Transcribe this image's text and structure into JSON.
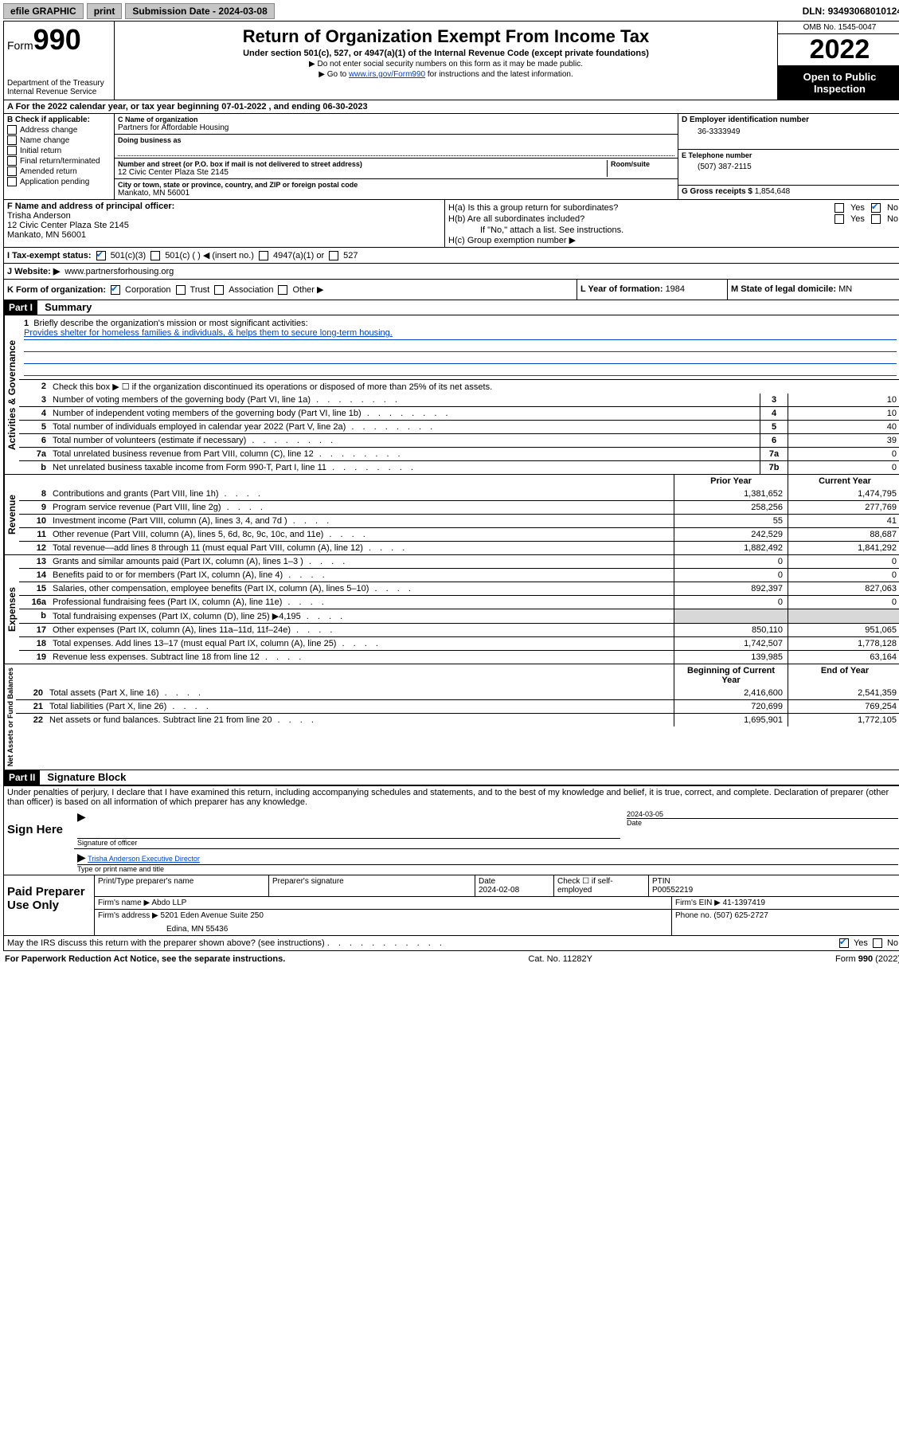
{
  "topbar": {
    "efile": "efile GRAPHIC",
    "print": "print",
    "submission_label": "Submission Date - ",
    "submission_date": "2024-03-08",
    "dln_label": "DLN: ",
    "dln": "93493068010124"
  },
  "header": {
    "form_label": "Form",
    "form_number": "990",
    "dept": "Department of the Treasury",
    "irs": "Internal Revenue Service",
    "title": "Return of Organization Exempt From Income Tax",
    "subtitle": "Under section 501(c), 527, or 4947(a)(1) of the Internal Revenue Code (except private foundations)",
    "note1": "▶ Do not enter social security numbers on this form as it may be made public.",
    "note2_pre": "▶ Go to ",
    "note2_link": "www.irs.gov/Form990",
    "note2_post": " for instructions and the latest information.",
    "omb": "OMB No. 1545-0047",
    "year": "2022",
    "open_public": "Open to Public Inspection"
  },
  "line_a": {
    "text_pre": "A For the 2022 calendar year, or tax year beginning ",
    "begin": "07-01-2022",
    "mid": " , and ending ",
    "end": "06-30-2023"
  },
  "section_b": {
    "label": "B Check if applicable:",
    "items": [
      "Address change",
      "Name change",
      "Initial return",
      "Final return/terminated",
      "Amended return",
      "Application pending"
    ]
  },
  "section_c": {
    "name_label": "C Name of organization",
    "name": "Partners for Affordable Housing",
    "dba_label": "Doing business as",
    "dba": "",
    "street_label": "Number and street (or P.O. box if mail is not delivered to street address)",
    "room_label": "Room/suite",
    "street": "12 Civic Center Plaza Ste 2145",
    "city_label": "City or town, state or province, country, and ZIP or foreign postal code",
    "city": "Mankato, MN  56001"
  },
  "section_d": {
    "label": "D Employer identification number",
    "ein": "36-3333949"
  },
  "section_e": {
    "label": "E Telephone number",
    "phone": "(507) 387-2115"
  },
  "section_g": {
    "label": "G Gross receipts $ ",
    "amount": "1,854,648"
  },
  "section_f": {
    "label": "F Name and address of principal officer:",
    "name": "Trisha Anderson",
    "addr1": "12 Civic Center Plaza Ste 2145",
    "addr2": "Mankato, MN  56001"
  },
  "section_h": {
    "ha": "H(a)  Is this a group return for subordinates?",
    "ha_yes": "Yes",
    "ha_no": "No",
    "hb": "H(b)  Are all subordinates included?",
    "hb_yes": "Yes",
    "hb_no": "No",
    "hb_note": "If \"No,\" attach a list. See instructions.",
    "hc": "H(c)  Group exemption number ▶"
  },
  "line_i": {
    "label": "I   Tax-exempt status:",
    "opt1": "501(c)(3)",
    "opt2": "501(c) (   ) ◀ (insert no.)",
    "opt3": "4947(a)(1) or",
    "opt4": "527"
  },
  "line_j": {
    "label": "J   Website: ▶ ",
    "url": "www.partnersforhousing.org"
  },
  "line_k": {
    "label": "K Form of organization:",
    "opts": [
      "Corporation",
      "Trust",
      "Association",
      "Other ▶"
    ],
    "l_label": "L Year of formation: ",
    "l_val": "1984",
    "m_label": "M State of legal domicile: ",
    "m_val": "MN"
  },
  "part1": {
    "header": "Part I",
    "title": "Summary",
    "tab_gov": "Activities & Governance",
    "tab_rev": "Revenue",
    "tab_exp": "Expenses",
    "tab_net": "Net Assets or Fund Balances",
    "q1": "Briefly describe the organization's mission or most significant activities:",
    "mission": "Provides shelter for homeless families & individuals, & helps them to secure long-term housing.",
    "q2": "Check this box ▶ ☐  if the organization discontinued its operations or disposed of more than 25% of its net assets.",
    "lines_gov": [
      {
        "n": "3",
        "d": "Number of voting members of the governing body (Part VI, line 1a)",
        "box": "3",
        "v": "10"
      },
      {
        "n": "4",
        "d": "Number of independent voting members of the governing body (Part VI, line 1b)",
        "box": "4",
        "v": "10"
      },
      {
        "n": "5",
        "d": "Total number of individuals employed in calendar year 2022 (Part V, line 2a)",
        "box": "5",
        "v": "40"
      },
      {
        "n": "6",
        "d": "Total number of volunteers (estimate if necessary)",
        "box": "6",
        "v": "39"
      },
      {
        "n": "7a",
        "d": "Total unrelated business revenue from Part VIII, column (C), line 12",
        "box": "7a",
        "v": "0"
      },
      {
        "n": "b",
        "d": "Net unrelated business taxable income from Form 990-T, Part I, line 11",
        "box": "7b",
        "v": "0"
      }
    ],
    "col_prior": "Prior Year",
    "col_current": "Current Year",
    "lines_rev": [
      {
        "n": "8",
        "d": "Contributions and grants (Part VIII, line 1h)",
        "p": "1,381,652",
        "c": "1,474,795"
      },
      {
        "n": "9",
        "d": "Program service revenue (Part VIII, line 2g)",
        "p": "258,256",
        "c": "277,769"
      },
      {
        "n": "10",
        "d": "Investment income (Part VIII, column (A), lines 3, 4, and 7d )",
        "p": "55",
        "c": "41"
      },
      {
        "n": "11",
        "d": "Other revenue (Part VIII, column (A), lines 5, 6d, 8c, 9c, 10c, and 11e)",
        "p": "242,529",
        "c": "88,687"
      },
      {
        "n": "12",
        "d": "Total revenue—add lines 8 through 11 (must equal Part VIII, column (A), line 12)",
        "p": "1,882,492",
        "c": "1,841,292"
      }
    ],
    "lines_exp": [
      {
        "n": "13",
        "d": "Grants and similar amounts paid (Part IX, column (A), lines 1–3 )",
        "p": "0",
        "c": "0"
      },
      {
        "n": "14",
        "d": "Benefits paid to or for members (Part IX, column (A), line 4)",
        "p": "0",
        "c": "0"
      },
      {
        "n": "15",
        "d": "Salaries, other compensation, employee benefits (Part IX, column (A), lines 5–10)",
        "p": "892,397",
        "c": "827,063"
      },
      {
        "n": "16a",
        "d": "Professional fundraising fees (Part IX, column (A), line 11e)",
        "p": "0",
        "c": "0"
      },
      {
        "n": "b",
        "d": "Total fundraising expenses (Part IX, column (D), line 25) ▶4,195",
        "p": "",
        "c": "",
        "gray": true
      },
      {
        "n": "17",
        "d": "Other expenses (Part IX, column (A), lines 11a–11d, 11f–24e)",
        "p": "850,110",
        "c": "951,065"
      },
      {
        "n": "18",
        "d": "Total expenses. Add lines 13–17 (must equal Part IX, column (A), line 25)",
        "p": "1,742,507",
        "c": "1,778,128"
      },
      {
        "n": "19",
        "d": "Revenue less expenses. Subtract line 18 from line 12",
        "p": "139,985",
        "c": "63,164"
      }
    ],
    "col_begin": "Beginning of Current Year",
    "col_end": "End of Year",
    "lines_net": [
      {
        "n": "20",
        "d": "Total assets (Part X, line 16)",
        "p": "2,416,600",
        "c": "2,541,359"
      },
      {
        "n": "21",
        "d": "Total liabilities (Part X, line 26)",
        "p": "720,699",
        "c": "769,254"
      },
      {
        "n": "22",
        "d": "Net assets or fund balances. Subtract line 21 from line 20",
        "p": "1,695,901",
        "c": "1,772,105"
      }
    ]
  },
  "part2": {
    "header": "Part II",
    "title": "Signature Block",
    "declaration": "Under penalties of perjury, I declare that I have examined this return, including accompanying schedules and statements, and to the best of my knowledge and belief, it is true, correct, and complete. Declaration of preparer (other than officer) is based on all information of which preparer has any knowledge.",
    "sign_here": "Sign Here",
    "sig_officer": "Signature of officer",
    "sig_date_label": "Date",
    "sig_date": "2024-03-05",
    "name_title": "Trisha Anderson  Executive Director",
    "name_title_label": "Type or print name and title",
    "paid_preparer": "Paid Preparer Use Only",
    "pp_name_label": "Print/Type preparer's name",
    "pp_sig_label": "Preparer's signature",
    "pp_date_label": "Date",
    "pp_date": "2024-02-08",
    "pp_check_label": "Check ☐ if self-employed",
    "pp_ptin_label": "PTIN",
    "pp_ptin": "P00552219",
    "firm_name_label": "Firm's name      ▶ ",
    "firm_name": "Abdo LLP",
    "firm_ein_label": "Firm's EIN ▶ ",
    "firm_ein": "41-1397419",
    "firm_addr_label": "Firm's address ▶ ",
    "firm_addr1": "5201 Eden Avenue Suite 250",
    "firm_addr2": "Edina, MN  55436",
    "firm_phone_label": "Phone no. ",
    "firm_phone": "(507) 625-2727",
    "discuss": "May the IRS discuss this return with the preparer shown above? (see instructions)",
    "discuss_yes": "Yes",
    "discuss_no": "No"
  },
  "footer": {
    "left": "For Paperwork Reduction Act Notice, see the separate instructions.",
    "mid": "Cat. No. 11282Y",
    "right_pre": "Form ",
    "right_form": "990",
    "right_post": " (2022)"
  }
}
